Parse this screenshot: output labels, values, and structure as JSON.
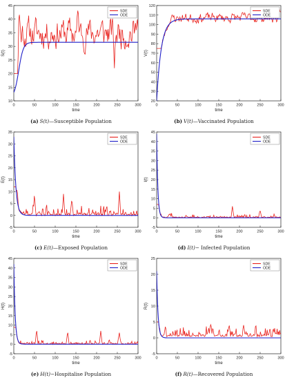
{
  "colors": {
    "sde": "#e8201c",
    "ode": "#1e1ec8",
    "axis": "#222222"
  },
  "chart_data": [
    {
      "type": "line",
      "panel_label": "(a)",
      "symbol": "S(t)",
      "caption_text": "—Susceptible Population",
      "xlabel": "time",
      "ylabel": "S(t)",
      "xlim": [
        0,
        300
      ],
      "ylim": [
        10,
        45
      ],
      "xticks": [
        0,
        50,
        100,
        150,
        200,
        250,
        300
      ],
      "yticks": [
        10,
        15,
        20,
        25,
        30,
        35,
        40,
        45
      ],
      "legend": [
        "SDE",
        "ODE"
      ],
      "ode": {
        "kind": "logistic",
        "start": 11,
        "end": 31.5,
        "rate": 0.18,
        "mid": 12
      },
      "sde": {
        "seed": 11,
        "base": 35,
        "amp": 5.5,
        "step": 1.5,
        "start": 12,
        "spikes": [
          [
            13,
            43
          ],
          [
            155,
            44
          ],
          [
            243,
            22
          ],
          [
            298,
            42
          ]
        ],
        "clipLow": 20,
        "clipHigh": 44
      }
    },
    {
      "type": "line",
      "panel_label": "(b)",
      "symbol": "V(t)",
      "caption_text": "—Vaccinated Population",
      "xlabel": "time",
      "ylabel": "V(t)",
      "xlim": [
        0,
        300
      ],
      "ylim": [
        20,
        120
      ],
      "xticks": [
        0,
        50,
        100,
        150,
        200,
        250,
        300
      ],
      "yticks": [
        20,
        30,
        40,
        50,
        60,
        70,
        80,
        90,
        100,
        110,
        120
      ],
      "legend": [
        "SDE",
        "ODE"
      ],
      "ode": {
        "kind": "rise",
        "start": 20,
        "end": 106,
        "rate": 0.09
      },
      "sde": {
        "seed": 23,
        "base": 108,
        "amp": 5,
        "step": 1.6,
        "start": 22,
        "spikes": [
          [
            295,
            118
          ]
        ],
        "clipLow": 75,
        "clipHigh": 119,
        "follow": true
      }
    },
    {
      "type": "line",
      "panel_label": "(c)",
      "symbol": "E(t)",
      "caption_text": "—Exposed Population",
      "xlabel": "time",
      "ylabel": "E(t)",
      "xlim": [
        0,
        300
      ],
      "ylim": [
        -5,
        35
      ],
      "xticks": [
        0,
        50,
        100,
        150,
        200,
        250,
        300
      ],
      "yticks": [
        -5,
        0,
        5,
        10,
        15,
        20,
        25,
        30,
        35
      ],
      "legend": [
        "SDE",
        "ODE"
      ],
      "ode": {
        "kind": "decay",
        "start": 33,
        "end": 0,
        "rate": 0.2
      },
      "sde": {
        "seed": 37,
        "base": 0.5,
        "amp": 2.5,
        "step": 1.5,
        "start": 33,
        "spikes": [
          [
            8,
            11
          ],
          [
            50,
            9
          ],
          [
            120,
            9
          ],
          [
            140,
            7
          ],
          [
            255,
            10
          ]
        ],
        "clipLow": -1.8,
        "clipHigh": 12,
        "decay": true
      }
    },
    {
      "type": "line",
      "panel_label": "(d)",
      "symbol": "I(t)",
      "caption_text": "− Infected Population",
      "xlabel": "time",
      "ylabel": "I(t)",
      "xlim": [
        0,
        300
      ],
      "ylim": [
        -5,
        45
      ],
      "xticks": [
        0,
        50,
        100,
        150,
        200,
        250,
        300
      ],
      "yticks": [
        -5,
        0,
        5,
        10,
        15,
        20,
        25,
        30,
        35,
        40,
        45
      ],
      "legend": [
        "SDE",
        "ODE"
      ],
      "ode": {
        "kind": "decay",
        "start": 44,
        "end": 0,
        "rate": 0.35
      },
      "sde": {
        "seed": 53,
        "base": 0.3,
        "amp": 1.1,
        "step": 1.5,
        "start": 45,
        "spikes": [
          [
            183,
            6
          ],
          [
            250,
            4
          ]
        ],
        "clipLow": -1.5,
        "clipHigh": 7,
        "decay": true
      }
    },
    {
      "type": "line",
      "panel_label": "(e)",
      "symbol": "H(t)",
      "caption_text": "−Hospitalise Population",
      "xlabel": "time",
      "ylabel": "H(t)",
      "xlim": [
        0,
        300
      ],
      "ylim": [
        -5,
        45
      ],
      "xticks": [
        0,
        50,
        100,
        150,
        200,
        250,
        300
      ],
      "yticks": [
        -5,
        0,
        5,
        10,
        15,
        20,
        25,
        30,
        35,
        40,
        45
      ],
      "legend": [
        "SDE",
        "ODE"
      ],
      "ode": {
        "kind": "decay",
        "start": 42,
        "end": 0,
        "rate": 0.3
      },
      "sde": {
        "seed": 71,
        "base": 0.3,
        "amp": 1.3,
        "step": 1.5,
        "start": 42,
        "spikes": [
          [
            55,
            8
          ],
          [
            130,
            7
          ],
          [
            210,
            7
          ],
          [
            255,
            6
          ]
        ],
        "clipLow": -1.5,
        "clipHigh": 9,
        "decay": true
      }
    },
    {
      "type": "line",
      "panel_label": "(f)",
      "symbol": "R(t)",
      "caption_text": "—Recovered Population",
      "xlabel": "time",
      "ylabel": "R(t)",
      "xlim": [
        0,
        300
      ],
      "ylim": [
        -5,
        25
      ],
      "xticks": [
        0,
        50,
        100,
        150,
        200,
        250,
        300
      ],
      "yticks": [
        -5,
        0,
        5,
        10,
        15,
        20,
        25
      ],
      "legend": [
        "SDE",
        "ODE"
      ],
      "ode": {
        "kind": "decay",
        "start": 21,
        "end": 0,
        "rate": 0.3
      },
      "sde": {
        "seed": 97,
        "base": 0.8,
        "amp": 1.6,
        "step": 1.5,
        "start": 21,
        "spikes": [
          [
            130,
            4.5
          ],
          [
            175,
            4.5
          ],
          [
            210,
            4
          ]
        ],
        "clipLow": -1.2,
        "clipHigh": 5,
        "decay": true
      }
    }
  ]
}
